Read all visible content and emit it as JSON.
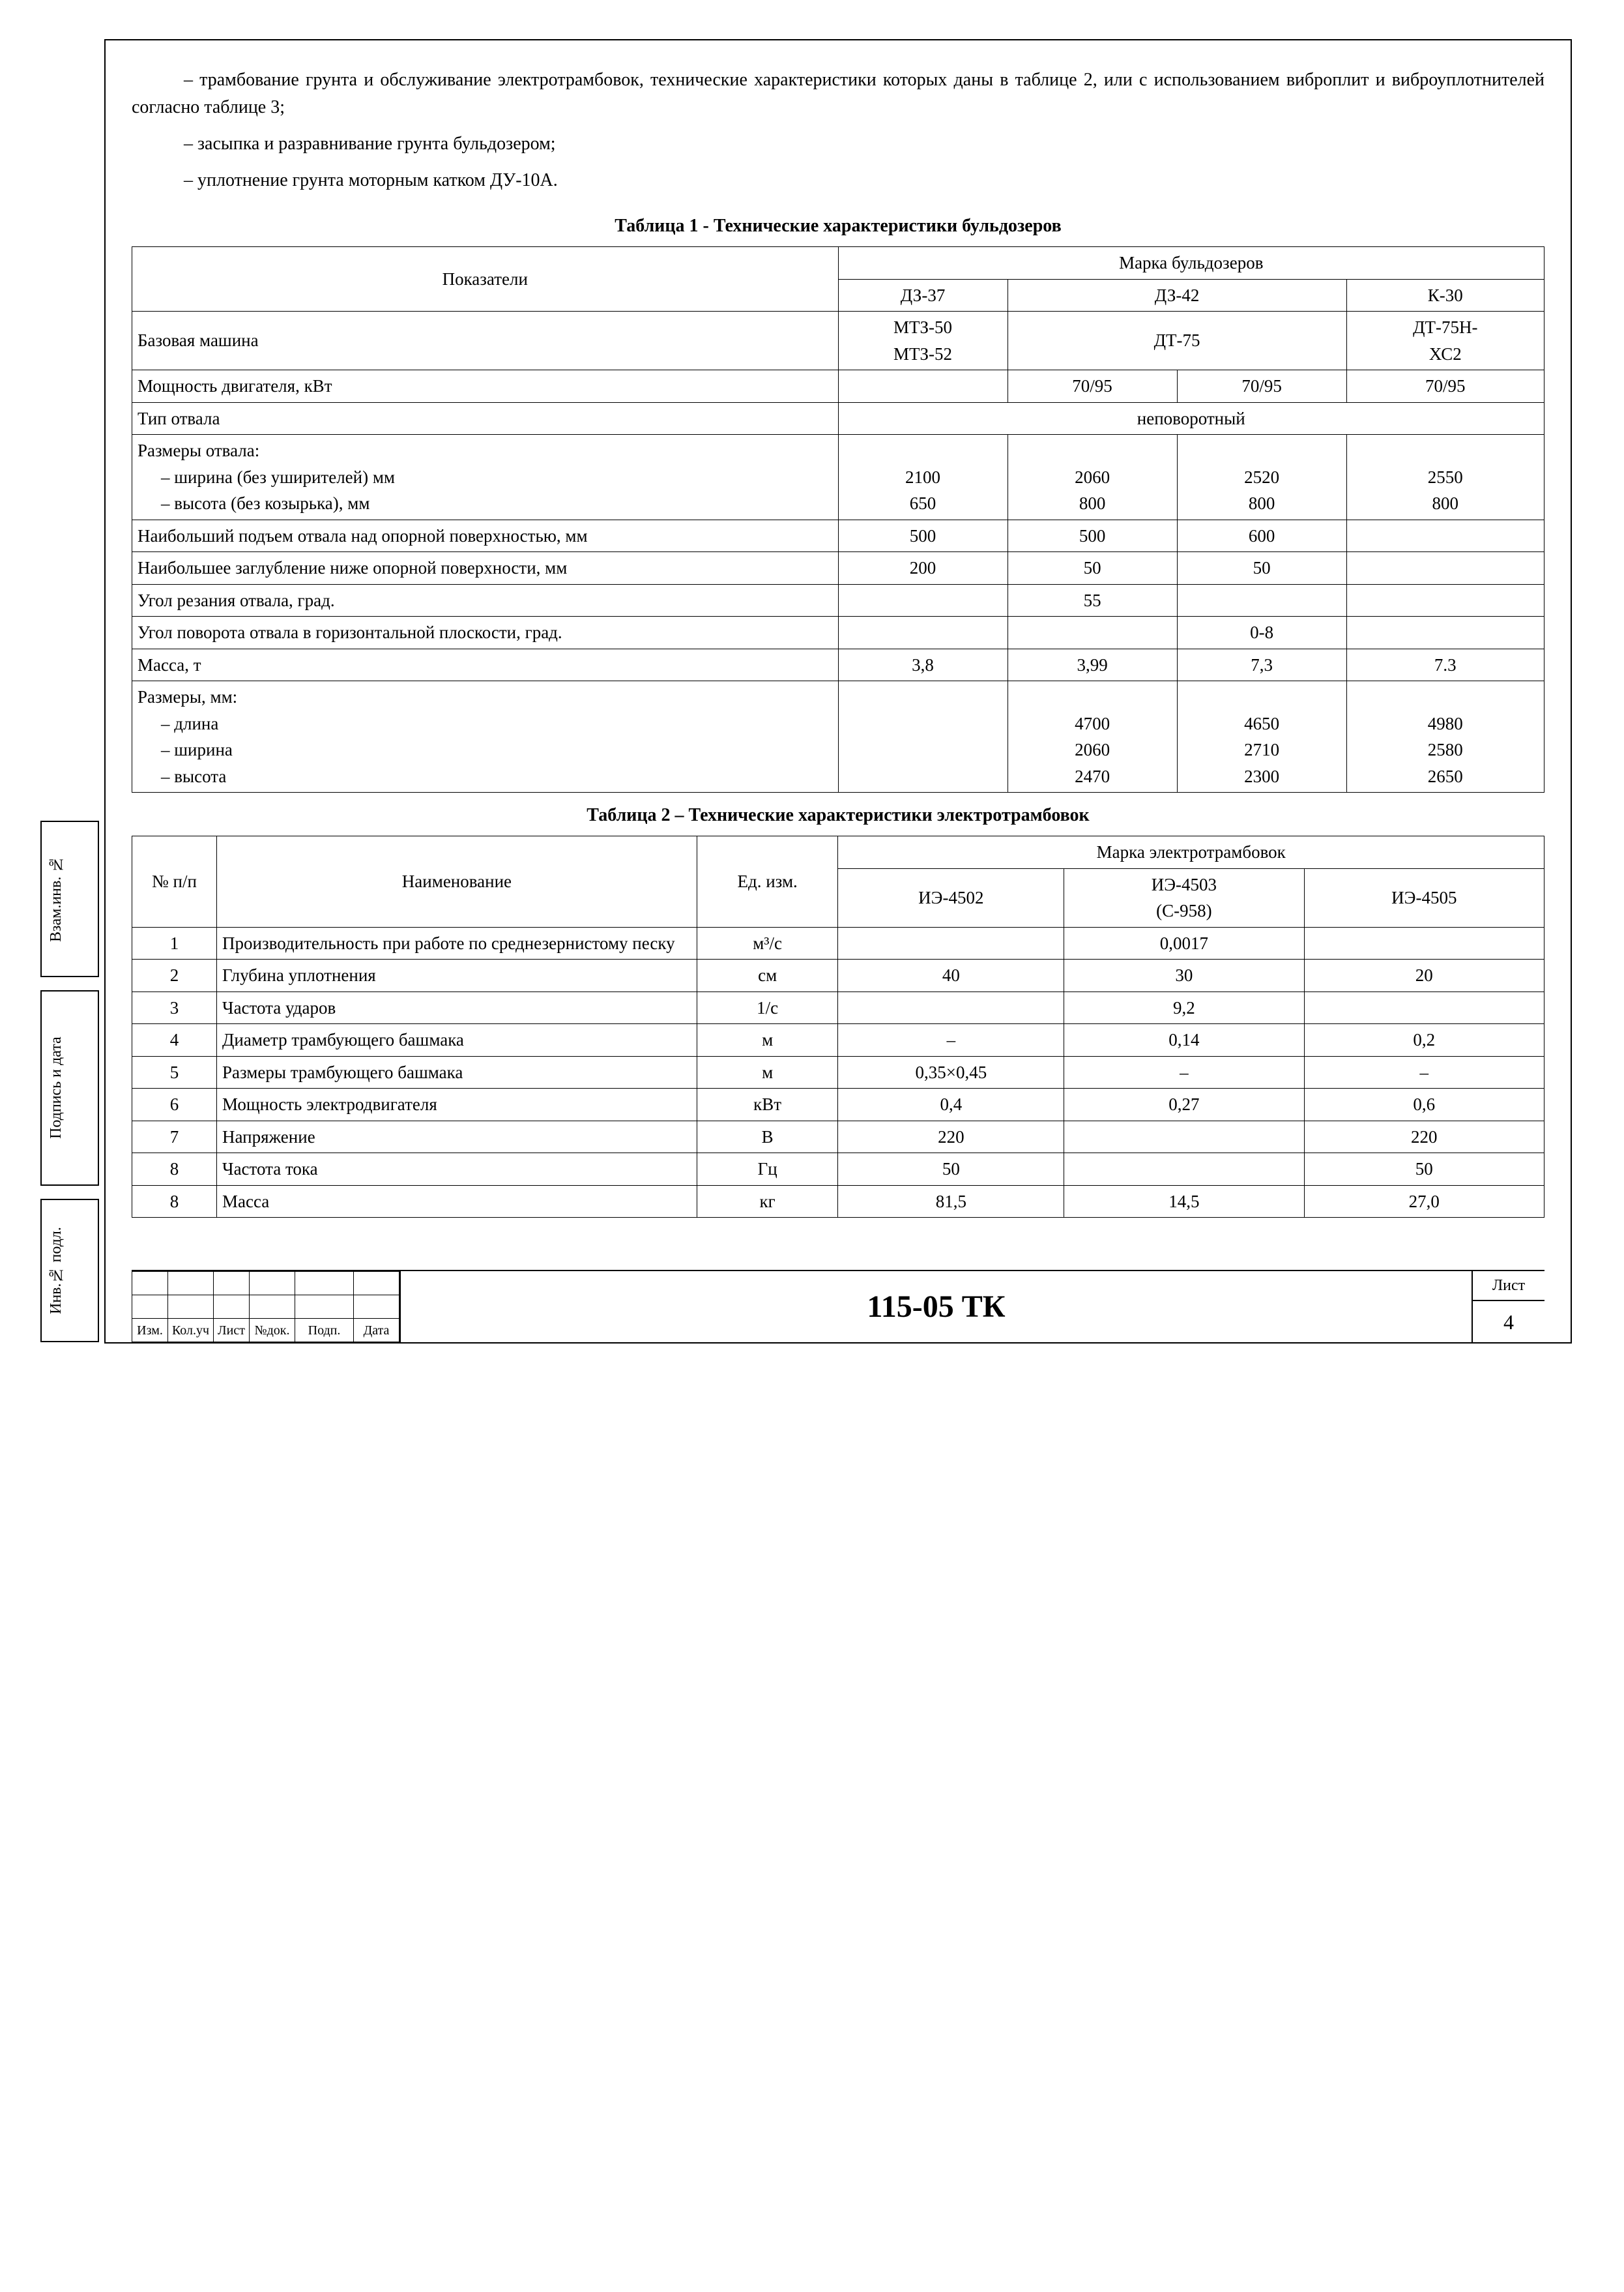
{
  "para1": "– трамбование грунта и обслуживание электротрамбовок, технические характеристики которых даны в таблице 2, или с использованием виброплит и виброуплотнителей согласно таблице 3;",
  "bullet2": "– засыпка и разравнивание грунта бульдозером;",
  "bullet3": "– уплотнение грунта моторным катком ДУ-10А.",
  "t1_caption": "Таблица 1 - Технические характеристики бульдозеров",
  "t1_h_pokaz": "Показатели",
  "t1_h_marka": "Марка бульдозеров",
  "t1_col1": "ДЗ-37",
  "t1_col2": "ДЗ-42",
  "t1_col3": "К-30",
  "t1_r_base": "Базовая машина",
  "t1_base_1a": "МТЗ-50",
  "t1_base_1b": "МТЗ-52",
  "t1_base_2": "ДТ-75",
  "t1_base_3a": "ДТ-75Н-",
  "t1_base_3b": "ХС2",
  "t1_r_power": "Мощность двигателя, кВт",
  "t1_power_2a": "70/95",
  "t1_power_2b": "70/95",
  "t1_power_3": "70/95",
  "t1_r_type": "Тип отвала",
  "t1_type_val": "неповоротный",
  "t1_r_dim": "Размеры отвала:",
  "t1_r_dim_w": "– ширина (без уширителей) мм",
  "t1_r_dim_h": "– высота (без козырька), мм",
  "t1_dim_w_1": "2100",
  "t1_dim_w_2a": "2060",
  "t1_dim_w_2b": "2520",
  "t1_dim_w_3": "2550",
  "t1_dim_h_1": "650",
  "t1_dim_h_2a": "800",
  "t1_dim_h_2b": "800",
  "t1_dim_h_3": "800",
  "t1_r_lift": "Наибольший подъем отвала над опорной поверхностью, мм",
  "t1_lift_1": "500",
  "t1_lift_2a": "500",
  "t1_lift_2b": "600",
  "t1_r_deep": "Наибольшее заглубление ниже опорной поверхности, мм",
  "t1_deep_1": "200",
  "t1_deep_2a": "50",
  "t1_deep_2b": "50",
  "t1_r_cut": "Угол резания отвала, град.",
  "t1_cut_2a": "55",
  "t1_r_turn": "Угол поворота отвала в горизонтальной плоскости, град.",
  "t1_turn_2b": "0-8",
  "t1_r_mass": "Масса, т",
  "t1_mass_1": "3,8",
  "t1_mass_2a": "3,99",
  "t1_mass_2b": "7,3",
  "t1_mass_3": "7.3",
  "t1_r_size": "Размеры, мм:",
  "t1_r_size_l": "– длина",
  "t1_r_size_w": "– ширина",
  "t1_r_size_h": "– высота",
  "t1_sl_2a": "4700",
  "t1_sl_2b": "4650",
  "t1_sl_3": "4980",
  "t1_sw_2a": "2060",
  "t1_sw_2b": "2710",
  "t1_sw_3": "2580",
  "t1_sh_2a": "2470",
  "t1_sh_2b": "2300",
  "t1_sh_3": "2650",
  "t2_caption": "Таблица 2 – Технические характеристики электротрамбовок",
  "t2_h_no": "№ п/п",
  "t2_h_name": "Наименование",
  "t2_h_unit": "Ед. изм.",
  "t2_h_marka": "Марка электротрамбовок",
  "t2_c1": "ИЭ-4502",
  "t2_c2a": "ИЭ-4503",
  "t2_c2b": "(С-958)",
  "t2_c3": "ИЭ-4505",
  "t2_rows": {
    "r1": {
      "n": "1",
      "name": "Производительность при работе по среднезернистому песку",
      "u": "м³/с",
      "v1": "",
      "v2": "0,0017",
      "v3": ""
    },
    "r2": {
      "n": "2",
      "name": "Глубина уплотнения",
      "u": "см",
      "v1": "40",
      "v2": "30",
      "v3": "20"
    },
    "r3": {
      "n": "3",
      "name": "Частота ударов",
      "u": "1/с",
      "v1": "",
      "v2": "9,2",
      "v3": ""
    },
    "r4": {
      "n": "4",
      "name": "Диаметр трамбующего башмака",
      "u": "м",
      "v1": "–",
      "v2": "0,14",
      "v3": "0,2"
    },
    "r5": {
      "n": "5",
      "name": "Размеры трамбующего башмака",
      "u": "м",
      "v1": "0,35×0,45",
      "v2": "–",
      "v3": "–"
    },
    "r6": {
      "n": "6",
      "name": "Мощность электродвигателя",
      "u": "кВт",
      "v1": "0,4",
      "v2": "0,27",
      "v3": "0,6"
    },
    "r7": {
      "n": "7",
      "name": "Напряжение",
      "u": "В",
      "v1": "220",
      "v2": "",
      "v3": "220"
    },
    "r8": {
      "n": "8",
      "name": "Частота тока",
      "u": "Гц",
      "v1": "50",
      "v2": "",
      "v3": "50"
    },
    "r9": {
      "n": "8",
      "name": "Масса",
      "u": "кг",
      "v1": "81,5",
      "v2": "14,5",
      "v3": "27,0"
    }
  },
  "side": {
    "a": "Взам.инв. №",
    "b": "Подпись и дата",
    "c": "Инв.№ подл."
  },
  "stamp": {
    "cols": {
      "izm": "Изм.",
      "kol": "Кол.уч",
      "list": "Лист",
      "ndok": "№док.",
      "podp": "Подп.",
      "data": "Дата"
    },
    "code": "115-05 ТК",
    "sheet_lbl": "Лист",
    "sheet_num": "4"
  }
}
